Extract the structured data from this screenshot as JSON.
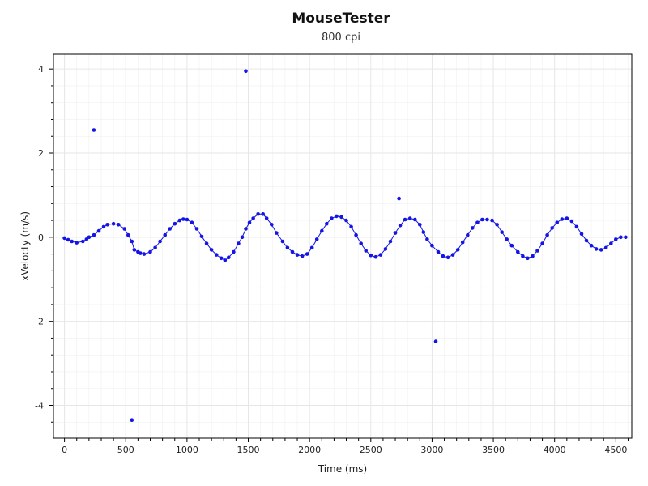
{
  "chart_data": {
    "type": "scatter",
    "title": "MouseTester",
    "subtitle": "800 cpi",
    "xlabel": "Time (ms)",
    "ylabel": "xVelocty (m/s)",
    "xlim": [
      -90,
      4630
    ],
    "ylim": [
      -4.78,
      4.35
    ],
    "x_ticks": [
      0,
      500,
      1000,
      1500,
      2000,
      2500,
      3000,
      3500,
      4000,
      4500
    ],
    "y_ticks": [
      4,
      2,
      0,
      -2,
      -4
    ],
    "grid": true,
    "legend": "none",
    "colors": {
      "series": "#1414e6",
      "grid": "#e6e6e6",
      "axis": "#000000"
    },
    "series": [
      {
        "x": [
          0,
          30,
          60,
          100,
          150,
          180,
          200,
          240,
          280,
          320,
          350,
          400,
          440,
          490,
          520,
          550,
          570,
          600,
          620,
          650,
          700,
          740,
          780,
          820,
          860,
          900,
          940,
          970,
          1000,
          1040,
          1080,
          1120,
          1160,
          1200,
          1240,
          1280,
          1310,
          1340,
          1380,
          1420,
          1450,
          1480,
          1510,
          1540,
          1580,
          1620,
          1650,
          1690,
          1730,
          1780,
          1820,
          1860,
          1900,
          1940,
          1980,
          2020,
          2060,
          2100,
          2140,
          2180,
          2220,
          2260,
          2300,
          2340,
          2380,
          2420,
          2460,
          2500,
          2540,
          2580,
          2620,
          2660,
          2700,
          2740,
          2780,
          2820,
          2860,
          2900,
          2930,
          2960,
          3000,
          3050,
          3090,
          3130,
          3170,
          3210,
          3250,
          3290,
          3330,
          3370,
          3410,
          3450,
          3490,
          3530,
          3570,
          3610,
          3650,
          3700,
          3740,
          3780,
          3820,
          3860,
          3900,
          3940,
          3980,
          4020,
          4060,
          4100,
          4140,
          4180,
          4220,
          4260,
          4300,
          4340,
          4380,
          4420,
          4460,
          4500,
          4540,
          4580,
          240,
          1480,
          2730,
          3030,
          550
        ],
        "y": [
          -0.02,
          -0.06,
          -0.1,
          -0.13,
          -0.1,
          -0.05,
          0.0,
          0.05,
          0.15,
          0.25,
          0.3,
          0.32,
          0.3,
          0.2,
          0.05,
          -0.1,
          -0.3,
          -0.35,
          -0.38,
          -0.4,
          -0.35,
          -0.25,
          -0.1,
          0.05,
          0.2,
          0.32,
          0.4,
          0.43,
          0.42,
          0.35,
          0.2,
          0.02,
          -0.15,
          -0.3,
          -0.42,
          -0.5,
          -0.55,
          -0.48,
          -0.35,
          -0.15,
          0.0,
          0.2,
          0.35,
          0.45,
          0.55,
          0.55,
          0.45,
          0.3,
          0.1,
          -0.1,
          -0.25,
          -0.35,
          -0.42,
          -0.45,
          -0.4,
          -0.25,
          -0.05,
          0.15,
          0.32,
          0.45,
          0.5,
          0.48,
          0.4,
          0.25,
          0.05,
          -0.15,
          -0.32,
          -0.43,
          -0.47,
          -0.42,
          -0.28,
          -0.1,
          0.1,
          0.28,
          0.42,
          0.45,
          0.42,
          0.3,
          0.12,
          -0.05,
          -0.2,
          -0.35,
          -0.45,
          -0.48,
          -0.42,
          -0.3,
          -0.12,
          0.05,
          0.22,
          0.35,
          0.42,
          0.42,
          0.4,
          0.3,
          0.12,
          -0.05,
          -0.2,
          -0.35,
          -0.45,
          -0.5,
          -0.45,
          -0.32,
          -0.15,
          0.05,
          0.22,
          0.35,
          0.43,
          0.45,
          0.38,
          0.25,
          0.08,
          -0.08,
          -0.2,
          -0.28,
          -0.3,
          -0.25,
          -0.15,
          -0.05,
          0.0,
          0.0,
          2.55,
          3.95,
          0.92,
          -2.48,
          -4.35
        ]
      }
    ]
  }
}
